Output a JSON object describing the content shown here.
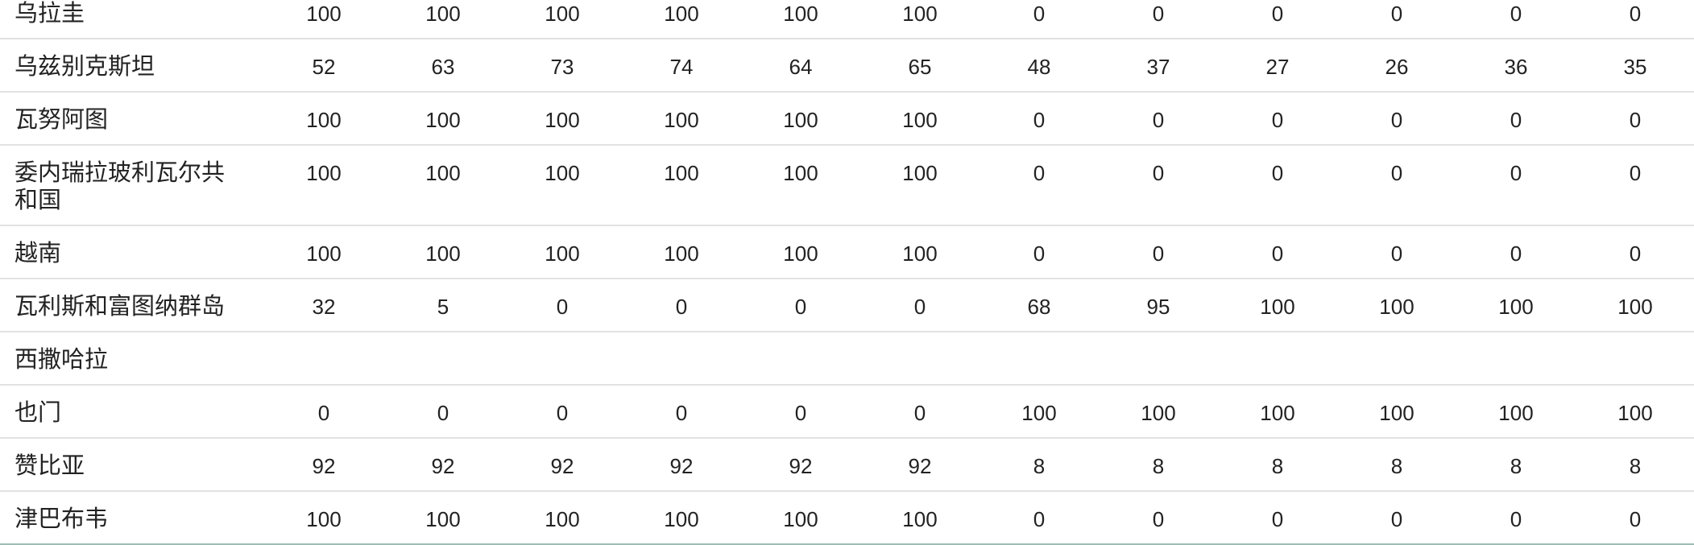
{
  "table": {
    "rows": [
      {
        "name": "乌拉圭",
        "values": [
          "100",
          "100",
          "100",
          "100",
          "100",
          "100",
          "0",
          "0",
          "0",
          "0",
          "0",
          "0"
        ]
      },
      {
        "name": "乌兹别克斯坦",
        "values": [
          "52",
          "63",
          "73",
          "74",
          "64",
          "65",
          "48",
          "37",
          "27",
          "26",
          "36",
          "35"
        ]
      },
      {
        "name": "瓦努阿图",
        "values": [
          "100",
          "100",
          "100",
          "100",
          "100",
          "100",
          "0",
          "0",
          "0",
          "0",
          "0",
          "0"
        ]
      },
      {
        "name": "委内瑞拉玻利瓦尔共和国",
        "values": [
          "100",
          "100",
          "100",
          "100",
          "100",
          "100",
          "0",
          "0",
          "0",
          "0",
          "0",
          "0"
        ]
      },
      {
        "name": "越南",
        "values": [
          "100",
          "100",
          "100",
          "100",
          "100",
          "100",
          "0",
          "0",
          "0",
          "0",
          "0",
          "0"
        ]
      },
      {
        "name": "瓦利斯和富图纳群岛",
        "values": [
          "32",
          "5",
          "0",
          "0",
          "0",
          "0",
          "68",
          "95",
          "100",
          "100",
          "100",
          "100"
        ]
      },
      {
        "name": "西撒哈拉",
        "values": [
          "",
          "",
          "",
          "",
          "",
          "",
          "",
          "",
          "",
          "",
          "",
          ""
        ]
      },
      {
        "name": "也门",
        "values": [
          "0",
          "0",
          "0",
          "0",
          "0",
          "0",
          "100",
          "100",
          "100",
          "100",
          "100",
          "100"
        ]
      },
      {
        "name": "赞比亚",
        "values": [
          "92",
          "92",
          "92",
          "92",
          "92",
          "92",
          "8",
          "8",
          "8",
          "8",
          "8",
          "8"
        ]
      },
      {
        "name": "津巴布韦",
        "values": [
          "100",
          "100",
          "100",
          "100",
          "100",
          "100",
          "0",
          "0",
          "0",
          "0",
          "0",
          "0"
        ]
      }
    ]
  }
}
